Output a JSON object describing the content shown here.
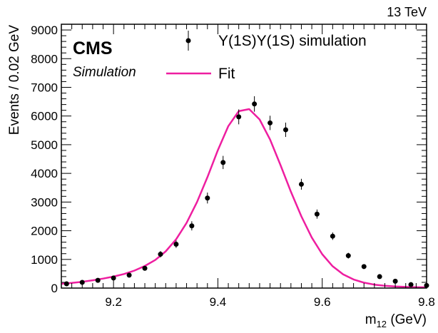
{
  "header": {
    "energy_label": "13 TeV",
    "experiment": "CMS",
    "subtitle": "Simulation"
  },
  "legend": {
    "data_label": "Υ(1S)Υ(1S) simulation",
    "fit_label": "Fit"
  },
  "colors": {
    "fit_line": "#ee1ea0",
    "markers": "#000000",
    "frame": "#000000"
  },
  "chart_data": {
    "type": "scatter",
    "title": "",
    "xlabel": "m",
    "xlabel_subscript": "12",
    "xlabel_unit": " (GeV)",
    "ylabel": "Events / 0.02 GeV",
    "xlim": [
      9.1,
      9.8
    ],
    "ylim": [
      0,
      9200
    ],
    "x_ticks": [
      9.2,
      9.4,
      9.6,
      9.8
    ],
    "x_tick_labels": [
      "9.2",
      "9.4",
      "9.6",
      "9.8"
    ],
    "y_ticks": [
      0,
      1000,
      2000,
      3000,
      4000,
      5000,
      6000,
      7000,
      8000,
      9000
    ],
    "y_tick_labels": [
      "0",
      "1000",
      "2000",
      "3000",
      "4000",
      "5000",
      "6000",
      "7000",
      "8000",
      "9000"
    ],
    "legend_position": "top-right",
    "series": [
      {
        "name": "Υ(1S)Υ(1S) simulation",
        "kind": "points-with-errors",
        "x": [
          9.11,
          9.14,
          9.17,
          9.2,
          9.23,
          9.26,
          9.29,
          9.32,
          9.35,
          9.38,
          9.41,
          9.44,
          9.47,
          9.5,
          9.53,
          9.56,
          9.59,
          9.62,
          9.65,
          9.68,
          9.71,
          9.74,
          9.77,
          9.8
        ],
        "y": [
          150,
          200,
          270,
          350,
          450,
          690,
          1180,
          1530,
          2170,
          3140,
          4380,
          5970,
          6420,
          5760,
          5520,
          3620,
          2580,
          1810,
          1130,
          750,
          400,
          240,
          120,
          90
        ],
        "err": [
          40,
          45,
          50,
          60,
          65,
          80,
          110,
          130,
          160,
          190,
          230,
          260,
          270,
          250,
          250,
          190,
          160,
          130,
          100,
          80,
          60,
          45,
          35,
          30
        ]
      },
      {
        "name": "Fit",
        "kind": "line",
        "x": [
          9.1,
          9.12,
          9.14,
          9.16,
          9.18,
          9.2,
          9.22,
          9.24,
          9.26,
          9.28,
          9.3,
          9.32,
          9.34,
          9.36,
          9.38,
          9.4,
          9.42,
          9.44,
          9.46,
          9.48,
          9.5,
          9.52,
          9.54,
          9.56,
          9.58,
          9.6,
          9.62,
          9.64,
          9.66,
          9.68,
          9.7,
          9.72,
          9.74,
          9.76,
          9.78,
          9.8
        ],
        "y": [
          150,
          180,
          220,
          270,
          330,
          400,
          490,
          610,
          770,
          980,
          1280,
          1700,
          2270,
          3000,
          3870,
          4810,
          5650,
          6170,
          6240,
          5880,
          5180,
          4290,
          3360,
          2500,
          1760,
          1180,
          760,
          480,
          300,
          190,
          120,
          80,
          55,
          40,
          30,
          25
        ]
      }
    ]
  }
}
